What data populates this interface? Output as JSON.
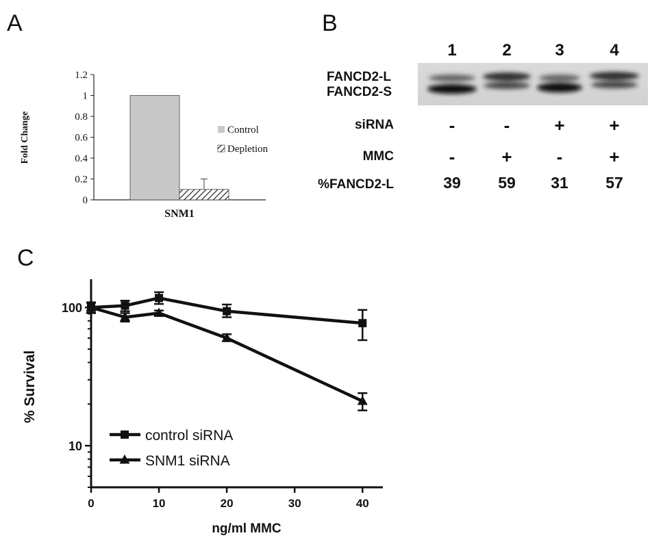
{
  "panels": {
    "a_label": "A",
    "b_label": "B",
    "c_label": "C"
  },
  "chart_data": [
    {
      "type": "bar",
      "panel": "A",
      "categories": [
        "SNM1"
      ],
      "series": [
        {
          "name": "Control",
          "values": [
            1.0
          ],
          "error": [
            0
          ],
          "color": "#c8c8c8",
          "pattern": "solid"
        },
        {
          "name": "Depletion",
          "values": [
            0.1
          ],
          "error": [
            0.1
          ],
          "color": "#ffffff",
          "pattern": "diagonal-hatch"
        }
      ],
      "xlabel": "SNM1",
      "ylabel": "Fold Change",
      "ylim": [
        0,
        1.2
      ],
      "yticks": [
        "0",
        "0.2",
        "0.4",
        "0.6",
        "0.8",
        "1",
        "1.2"
      ],
      "legend": "right",
      "grid": false
    },
    {
      "type": "table",
      "panel": "B",
      "lanes": [
        "1",
        "2",
        "3",
        "4"
      ],
      "band_labels": [
        "FANCD2-L",
        "FANCD2-S"
      ],
      "rows": [
        {
          "label": "siRNA",
          "values": [
            "-",
            "-",
            "+",
            "+"
          ]
        },
        {
          "label": "MMC",
          "values": [
            "-",
            "+",
            "-",
            "+"
          ]
        },
        {
          "label": "%FANCD2-L",
          "values": [
            "39",
            "59",
            "31",
            "57"
          ]
        }
      ]
    },
    {
      "type": "line",
      "panel": "C",
      "x": [
        0,
        5,
        10,
        20,
        40
      ],
      "series": [
        {
          "name": "control siRNA",
          "marker": "square",
          "values": [
            100,
            103,
            117,
            94,
            77
          ],
          "err_low": [
            91,
            94,
            106,
            85,
            58
          ],
          "err_high": [
            109,
            112,
            129,
            105,
            96
          ]
        },
        {
          "name": "SNM1 siRNA",
          "marker": "triangle",
          "values": [
            100,
            85,
            91,
            60,
            21
          ],
          "err_low": [
            92,
            79,
            87,
            57,
            18
          ],
          "err_high": [
            108,
            91,
            95,
            64,
            24
          ]
        }
      ],
      "xlabel": "ng/ml MMC",
      "ylabel": "% Survival",
      "xticks": [
        "0",
        "10",
        "20",
        "30",
        "40"
      ],
      "yticks": [
        "10",
        "100"
      ],
      "xlim": [
        0,
        43
      ],
      "ylim": [
        5,
        160
      ],
      "yscale": "log",
      "legend": "bottom-left",
      "grid": false
    }
  ]
}
